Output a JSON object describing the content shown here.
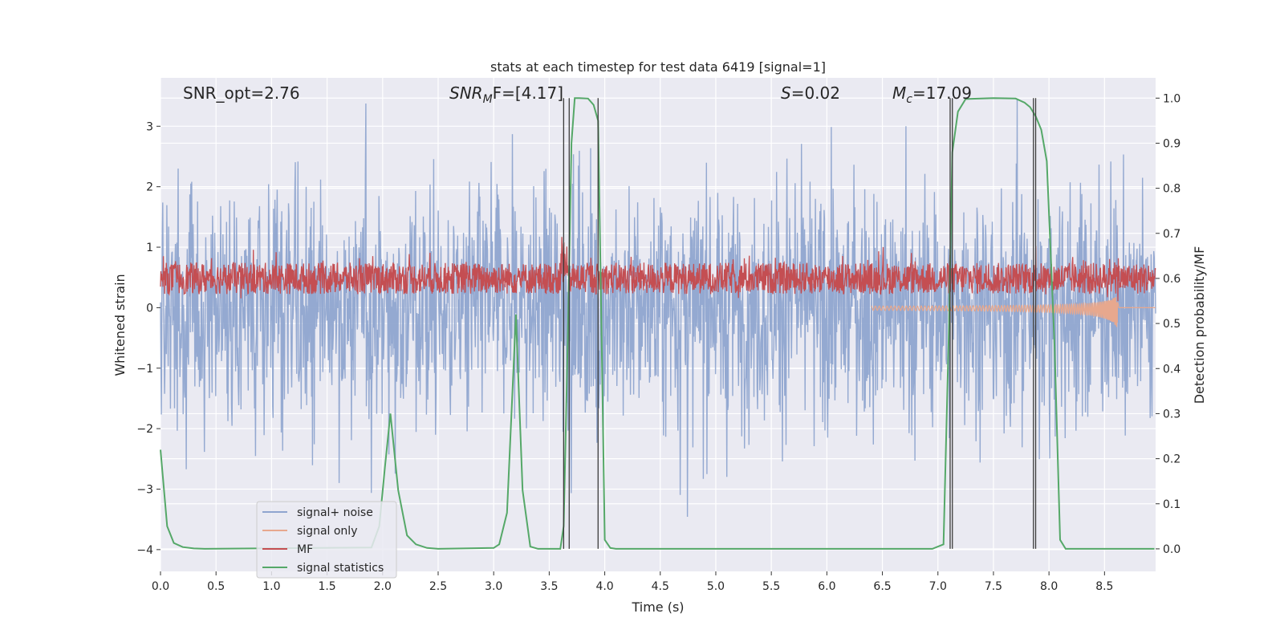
{
  "chart_data": {
    "type": "line",
    "title": "stats at each timestep for test data 6419 [signal=1]",
    "xlabel": "Time (s)",
    "ylabel": "Whitened strain",
    "ylabel_right": "Detection probability/MF",
    "xlim": [
      0.0,
      8.96
    ],
    "ylim": [
      -4.36,
      3.8
    ],
    "ylim_right": [
      -0.05,
      1.045
    ],
    "x_ticks": [
      "0.0",
      "0.5",
      "1.0",
      "1.5",
      "2.0",
      "2.5",
      "3.0",
      "3.5",
      "4.0",
      "4.5",
      "5.0",
      "5.5",
      "6.0",
      "6.5",
      "7.0",
      "7.5",
      "8.0",
      "8.5"
    ],
    "y_ticks": [
      "3",
      "2",
      "1",
      "0",
      "−1",
      "−2",
      "−3",
      "−4"
    ],
    "y_right_ticks": [
      "1.0",
      "0.9",
      "0.8",
      "0.7",
      "0.6",
      "0.5",
      "0.4",
      "0.3",
      "0.2",
      "0.1",
      "0.0"
    ],
    "grid": true,
    "legend_position": "lower-left",
    "annotations": [
      {
        "name": "snr-opt",
        "text": "SNR_opt=2.76"
      },
      {
        "name": "snr-mf",
        "text": "SNR_M F=[4.17]",
        "main": "SNR",
        "sub": "M",
        "tail": "F=[4.17]"
      },
      {
        "name": "s-stat",
        "text": "S=0.02",
        "main": "S",
        "tail": "=0.02"
      },
      {
        "name": "chirp-mass",
        "text": "M_c=17.09",
        "main": "M",
        "sub": "c",
        "tail": "=17.09"
      }
    ],
    "vertical_lines_x": [
      3.63,
      3.68,
      3.94,
      7.11,
      7.13,
      7.86,
      7.88
    ],
    "series": [
      {
        "name": "signal+ noise",
        "color": "#8fa5cf",
        "axis": "left",
        "description": "dense whitened noise, amplitude ~±2 with peaks to ±3.5"
      },
      {
        "name": "signal only",
        "color": "#e7a88e",
        "axis": "left",
        "description": "chirp growing until merger",
        "chirp_start_x": 6.4,
        "merger_x": 8.62,
        "peak_amplitude": -0.5
      },
      {
        "name": "MF",
        "color": "#c44e52",
        "axis": "right",
        "description": "matched-filter output oscillating between ~0.55 and ~0.65"
      },
      {
        "name": "signal statistics",
        "color": "#55a868",
        "axis": "right",
        "x": [
          0.0,
          0.06,
          0.12,
          0.2,
          0.3,
          0.4,
          1.9,
          1.97,
          2.02,
          2.07,
          2.14,
          2.22,
          2.3,
          2.4,
          2.5,
          3.0,
          3.05,
          3.12,
          3.2,
          3.26,
          3.33,
          3.4,
          3.6,
          3.63,
          3.67,
          3.7,
          3.73,
          3.77,
          3.85,
          3.9,
          3.94,
          3.97,
          4.0,
          4.05,
          4.1,
          6.95,
          7.05,
          7.1,
          7.13,
          7.18,
          7.25,
          7.5,
          7.7,
          7.78,
          7.83,
          7.88,
          7.93,
          7.98,
          8.05,
          8.1,
          8.15,
          8.95
        ],
        "y": [
          0.22,
          0.05,
          0.013,
          0.004,
          0.001,
          0.0,
          0.003,
          0.05,
          0.18,
          0.3,
          0.13,
          0.03,
          0.01,
          0.002,
          0.0,
          0.002,
          0.01,
          0.08,
          0.52,
          0.13,
          0.005,
          0.0,
          0.0,
          0.05,
          0.5,
          0.9,
          1.0,
          1.0,
          0.999,
          0.985,
          0.95,
          0.5,
          0.02,
          0.002,
          0.0,
          0.0,
          0.01,
          0.5,
          0.88,
          0.97,
          0.998,
          1.0,
          0.999,
          0.99,
          0.98,
          0.96,
          0.93,
          0.86,
          0.45,
          0.02,
          0.0,
          0.0
        ]
      }
    ]
  }
}
